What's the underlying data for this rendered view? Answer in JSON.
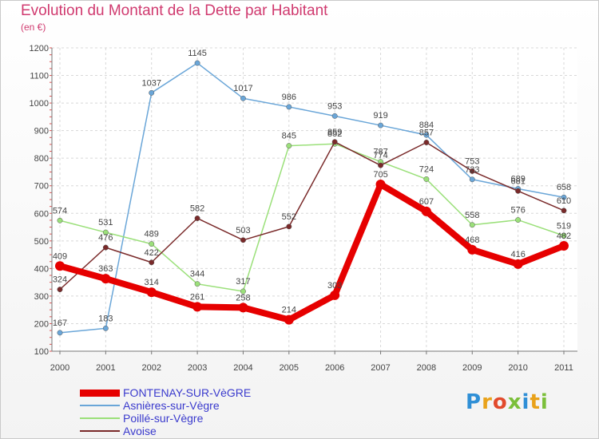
{
  "logo_text": "Proxiti",
  "chart_data": {
    "type": "line",
    "title": "Evolution du Montant de la Dette par Habitant",
    "unit": "(en €)",
    "xlabel": "",
    "ylabel": "",
    "categories": [
      "2000",
      "2001",
      "2002",
      "2003",
      "2004",
      "2005",
      "2006",
      "2007",
      "2008",
      "2009",
      "2010",
      "2011"
    ],
    "ylim": [
      100,
      1200
    ],
    "yticks": [
      100,
      200,
      300,
      400,
      500,
      600,
      700,
      800,
      900,
      1000,
      1100,
      1200
    ],
    "grid": true,
    "legend_position": "bottom-left",
    "series": [
      {
        "name": "FONTENAY-SUR-VèGRE",
        "color": "#e60000",
        "values": [
          409,
          363,
          314,
          261,
          258,
          214,
          303,
          705,
          607,
          468,
          416,
          482
        ]
      },
      {
        "name": "Asnières-sur-Vègre",
        "color": "#6aa6d8",
        "values": [
          167,
          183,
          1037,
          1145,
          1017,
          986,
          953,
          919,
          884,
          723,
          689,
          658
        ]
      },
      {
        "name": "Poillé-sur-Vègre",
        "color": "#9be07a",
        "values": [
          574,
          531,
          489,
          344,
          317,
          845,
          852,
          787,
          724,
          558,
          576,
          519
        ]
      },
      {
        "name": "Avoise",
        "color": "#7a2a2a",
        "values": [
          324,
          476,
          422,
          582,
          503,
          552,
          859,
          774,
          857,
          753,
          681,
          610
        ]
      }
    ]
  }
}
